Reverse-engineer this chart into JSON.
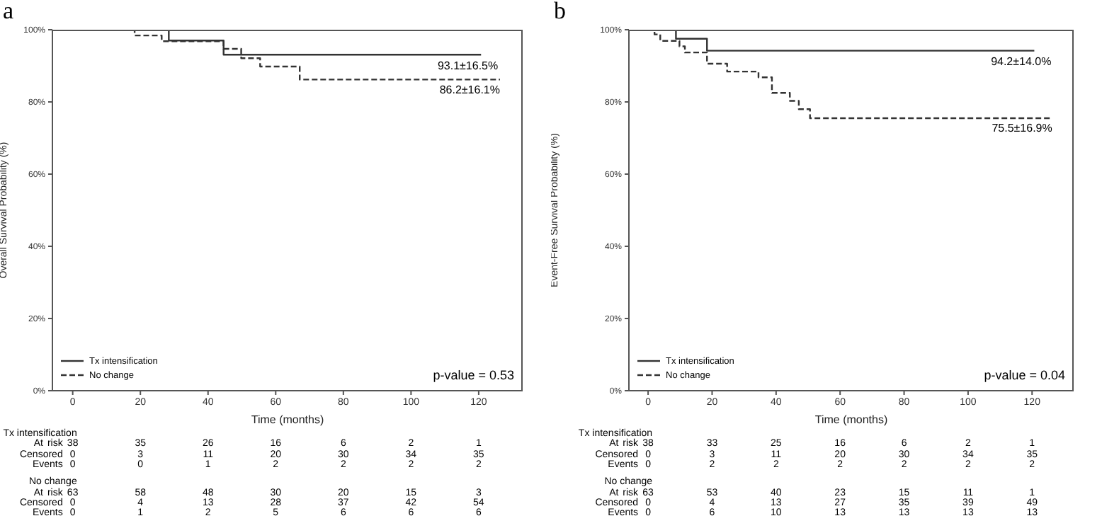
{
  "chart_data": [
    {
      "type": "step",
      "title": "a",
      "xlabel": "Time (months)",
      "ylabel": "Overall Survival Probability (%)",
      "series": [
        {
          "name": "Tx intensification",
          "color": "#333333",
          "line_style": "solid",
          "x": [
            0,
            28.4,
            44.6,
            120.7
          ],
          "values": [
            100,
            97.0,
            93.1,
            93.1
          ]
        },
        {
          "name": "No change",
          "color": "#333333",
          "line_style": "dashed",
          "x": [
            0,
            18.3,
            26.3,
            44.6,
            49.8,
            55.4,
            67.1,
            126.3
          ],
          "values": [
            100,
            98.4,
            96.8,
            94.7,
            92.1,
            89.8,
            86.2,
            86.2
          ]
        }
      ],
      "xlim": [
        -6,
        133
      ],
      "xticks": [
        0,
        20,
        40,
        60,
        80,
        100,
        120
      ],
      "ylim": [
        0,
        100
      ],
      "yticks": [
        {
          "value": 0,
          "label": "0%"
        },
        {
          "value": 20,
          "label": "20%"
        },
        {
          "value": 40,
          "label": "40%"
        },
        {
          "value": 60,
          "label": "60%"
        },
        {
          "value": 80,
          "label": "80%"
        },
        {
          "value": 100,
          "label": "100%"
        }
      ],
      "grid": false,
      "legend": "bottom left",
      "marker": "none",
      "annotations": [
        "93.1±16.5%",
        "86.2±16.1%",
        "p-value = 0.53",
        "Tx intensification",
        "At risk 38 35 26 16 6 2 1",
        "Censored 0 3 11 20 30 34 35",
        "Events 0 0 1 2 2 2 2",
        "No change",
        "At risk 63 58 48 30 20 15 3",
        "Censored 0 4 13 28 37 42 54",
        "Events 0 1 2 5 6 6 6"
      ]
    },
    {
      "type": "step",
      "title": "b",
      "xlabel": "Time (months)",
      "ylabel": "Event-Free Survival Probability (%)",
      "series": [
        {
          "name": "Tx intensification",
          "color": "#333333",
          "line_style": "solid",
          "x": [
            0,
            8.7,
            18.4,
            120.7
          ],
          "values": [
            100,
            97.5,
            94.2,
            94.2
          ]
        },
        {
          "name": "No change",
          "color": "#333333",
          "line_style": "dashed",
          "x": [
            0,
            2,
            3.8,
            9.8,
            11.5,
            18.4,
            24.7,
            34.5,
            38.7,
            44.3,
            47.1,
            50.6,
            126.3
          ],
          "values": [
            100,
            98.7,
            96.9,
            95.4,
            93.7,
            90.6,
            88.4,
            86.8,
            82.5,
            80.3,
            78.0,
            75.5,
            75.5
          ]
        }
      ],
      "xlim": [
        -6,
        133
      ],
      "xticks": [
        0,
        20,
        40,
        60,
        80,
        100,
        120
      ],
      "ylim": [
        0,
        100
      ],
      "yticks": [
        {
          "value": 0,
          "label": "0%"
        },
        {
          "value": 20,
          "label": "20%"
        },
        {
          "value": 40,
          "label": "40%"
        },
        {
          "value": 60,
          "label": "60%"
        },
        {
          "value": 80,
          "label": "80%"
        },
        {
          "value": 100,
          "label": "100%"
        }
      ],
      "grid": false,
      "legend": "bottom left",
      "marker": "none",
      "annotations": [
        "94.2±14.0%",
        "75.5±16.9%",
        "p-value = 0.04",
        "Tx intensification",
        "At risk 38 33 25 16 6 2 1",
        "Censored 0 3 11 20 30 34 35",
        "Events 0 2 2 2 2 2 2",
        "No change",
        "At risk 63 53 40 23 15 11 1",
        "Censored 0 4 13 27 35 39 49",
        "Events 0 6 10 13 13 13 13"
      ]
    }
  ]
}
